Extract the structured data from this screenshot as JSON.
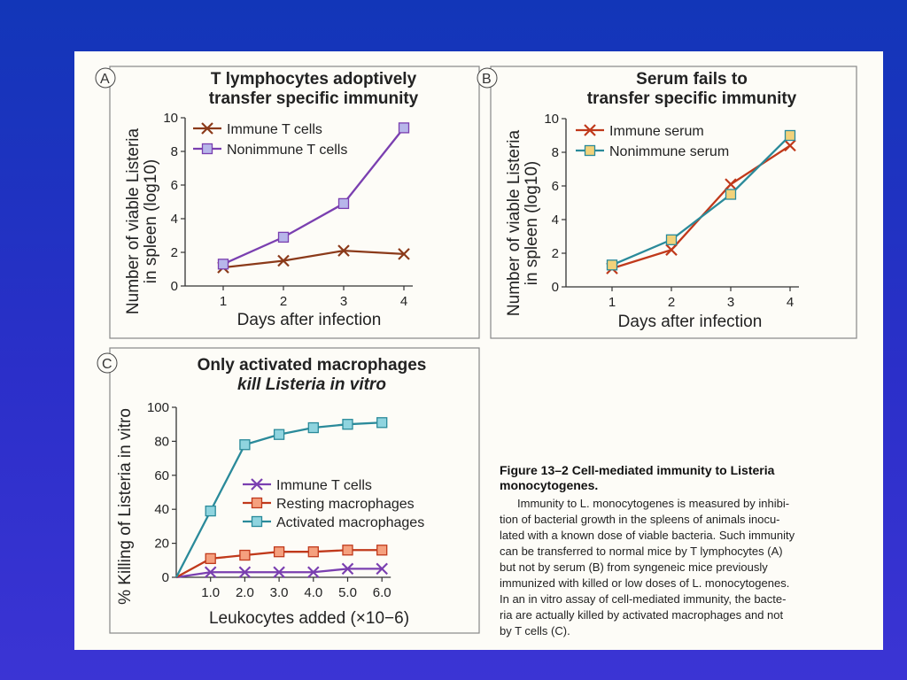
{
  "colors": {
    "slide_bg": "#2b2fc9",
    "paper": "#fdfcf7",
    "purple": "#7a3fb0",
    "orange": "#c0391b",
    "teal": "#2a8a9a",
    "brown": "#8b3a1a",
    "sq_fill": "#b7b6ea",
    "sq_fill_yellow": "#f2d27a",
    "sq_fill_orange": "#f5a07e",
    "sq_fill_teal": "#8fd4df"
  },
  "chart_data": [
    {
      "panel": "A",
      "type": "line",
      "title_lines": [
        "T lymphocytes adoptively",
        "transfer specific immunity"
      ],
      "xlabel": "Days after infection",
      "ylabel_lines": [
        "Number of viable Listeria",
        "in spleen (log10)"
      ],
      "x": [
        1,
        2,
        3,
        4
      ],
      "xticks": [
        "1",
        "2",
        "3",
        "4"
      ],
      "yticks": [
        "0",
        "2",
        "4",
        "6",
        "8",
        "10"
      ],
      "ylim": [
        0,
        10
      ],
      "series": [
        {
          "name": "Immune T cells",
          "marker": "x",
          "values": [
            1.1,
            1.5,
            2.1,
            1.9
          ]
        },
        {
          "name": "Nonimmune T cells",
          "marker": "square",
          "values": [
            1.3,
            2.9,
            4.9,
            9.4
          ]
        }
      ]
    },
    {
      "panel": "B",
      "type": "line",
      "title_lines": [
        "Serum fails to",
        "transfer specific immunity"
      ],
      "xlabel": "Days after infection",
      "ylabel_lines": [
        "Number of viable Listeria",
        "in spleen (log10)"
      ],
      "x": [
        1,
        2,
        3,
        4
      ],
      "xticks": [
        "1",
        "2",
        "3",
        "4"
      ],
      "yticks": [
        "0",
        "2",
        "4",
        "6",
        "8",
        "10"
      ],
      "ylim": [
        0,
        10
      ],
      "series": [
        {
          "name": "Immune serum",
          "marker": "x",
          "values": [
            1.1,
            2.2,
            6.1,
            8.4
          ]
        },
        {
          "name": "Nonimmune serum",
          "marker": "square",
          "values": [
            1.3,
            2.8,
            5.5,
            9.0
          ]
        }
      ]
    },
    {
      "panel": "C",
      "type": "line",
      "title_lines": [
        "Only activated macrophages",
        "kill Listeria in vitro"
      ],
      "xlabel": "Leukocytes added (×10−6)",
      "ylabel": "% Killing of Listeria in vitro",
      "x": [
        1,
        2,
        3,
        4,
        5,
        6
      ],
      "xticks": [
        "1.0",
        "2.0",
        "3.0",
        "4.0",
        "5.0",
        "6.0"
      ],
      "yticks": [
        "0",
        "20",
        "40",
        "60",
        "80",
        "100"
      ],
      "ylim": [
        0,
        100
      ],
      "series": [
        {
          "name": "Immune T cells",
          "marker": "x",
          "values": [
            3,
            3,
            3,
            3,
            5,
            5
          ]
        },
        {
          "name": "Resting macrophages",
          "marker": "square",
          "values": [
            11,
            13,
            15,
            15,
            16,
            16
          ]
        },
        {
          "name": "Activated macrophages",
          "marker": "square",
          "values": [
            39,
            78,
            84,
            88,
            90,
            91
          ]
        }
      ]
    }
  ],
  "caption": {
    "title_line1": "Figure 13–2  Cell-mediated immunity to Listeria",
    "title_line2": "monocytogenes.",
    "lines": [
      "Immunity to L. monocytogenes is measured by inhibi-",
      "tion of bacterial growth in the spleens of animals inocu-",
      "lated with a known dose of viable bacteria. Such immunity",
      "can be transferred to normal mice by T lymphocytes (A)",
      "but not by serum (B) from syngeneic mice previously",
      "immunized with killed or low doses of L. monocytogenes.",
      "In an in vitro assay of cell-mediated immunity, the bacte-",
      "ria are actually killed by activated macrophages and not",
      "by T cells (C)."
    ]
  }
}
